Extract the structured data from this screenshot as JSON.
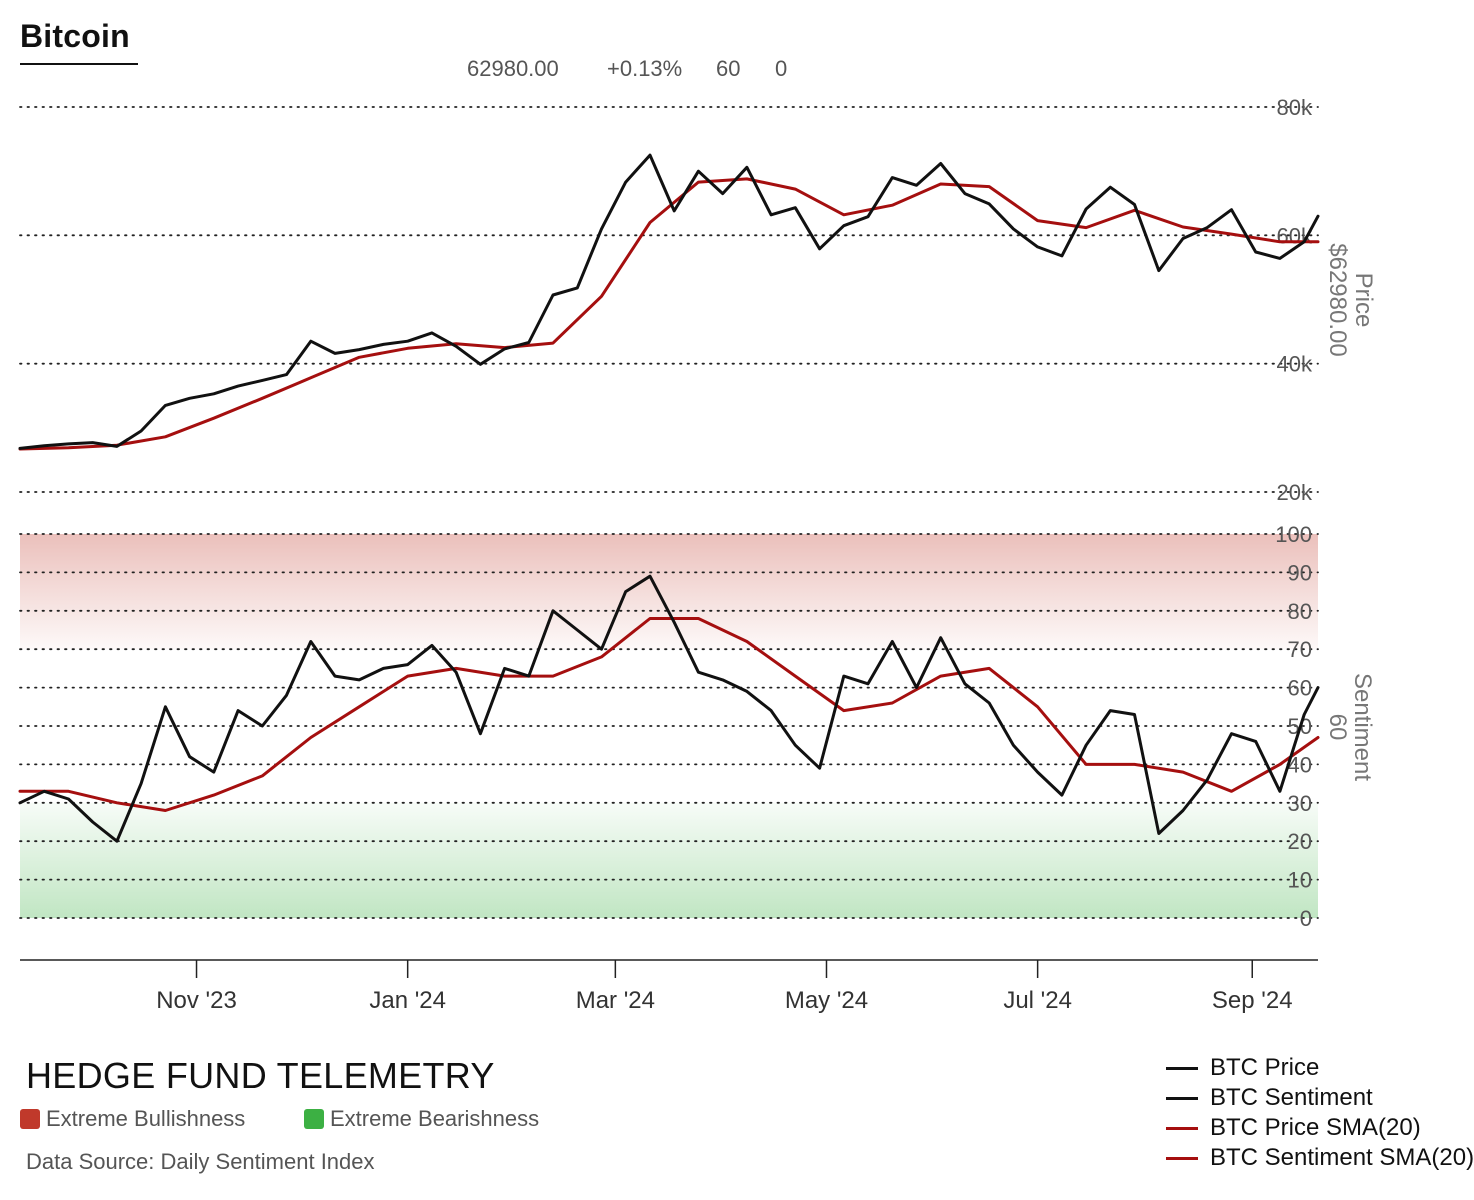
{
  "header": {
    "title": "Bitcoin",
    "readout": [
      "62980.00",
      "+0.13%",
      "60",
      "0"
    ]
  },
  "footer": {
    "brand": "HEDGE FUND TELEMETRY",
    "key_bull": "Extreme Bullishness",
    "key_bear": "Extreme Bearishness",
    "key_bull_color": "#c0392b",
    "key_bear_color": "#3cb043",
    "source": "Data Source: Daily Sentiment Index"
  },
  "chart_data": {
    "type": "line",
    "x_ticks": [
      "Nov '23",
      "Jan '24",
      "Mar '24",
      "May '24",
      "Jul '24",
      "Sep '24"
    ],
    "legend": [
      {
        "name": "BTC Price",
        "color": "#111111"
      },
      {
        "name": "BTC Sentiment",
        "color": "#111111"
      },
      {
        "name": "BTC Price SMA(20)",
        "color": "#a50f0f"
      },
      {
        "name": "BTC Sentiment SMA(20)",
        "color": "#a50f0f"
      }
    ],
    "price_panel": {
      "ylabel": "Price",
      "current_label": "$62980.00",
      "yticks": [
        20000,
        40000,
        60000,
        80000
      ],
      "ytick_labels": [
        "20k",
        "40k",
        "60k",
        "80k"
      ],
      "ylim": [
        20000,
        80000
      ],
      "series": [
        {
          "name": "BTC Price",
          "color": "#111111",
          "points": [
            [
              "2023-09-11",
              26800
            ],
            [
              "2023-09-18",
              27200
            ],
            [
              "2023-09-25",
              27500
            ],
            [
              "2023-10-02",
              27700
            ],
            [
              "2023-10-09",
              27100
            ],
            [
              "2023-10-16",
              29500
            ],
            [
              "2023-10-23",
              33500
            ],
            [
              "2023-10-30",
              34600
            ],
            [
              "2023-11-06",
              35300
            ],
            [
              "2023-11-13",
              36500
            ],
            [
              "2023-11-20",
              37400
            ],
            [
              "2023-11-27",
              38300
            ],
            [
              "2023-12-04",
              43500
            ],
            [
              "2023-12-11",
              41600
            ],
            [
              "2023-12-18",
              42200
            ],
            [
              "2023-12-25",
              43000
            ],
            [
              "2024-01-01",
              43500
            ],
            [
              "2024-01-08",
              44800
            ],
            [
              "2024-01-15",
              42700
            ],
            [
              "2024-01-22",
              39900
            ],
            [
              "2024-01-29",
              42300
            ],
            [
              "2024-02-05",
              43300
            ],
            [
              "2024-02-12",
              50700
            ],
            [
              "2024-02-19",
              51800
            ],
            [
              "2024-02-26",
              61000
            ],
            [
              "2024-03-04",
              68300
            ],
            [
              "2024-03-11",
              72500
            ],
            [
              "2024-03-18",
              63800
            ],
            [
              "2024-03-25",
              70000
            ],
            [
              "2024-04-01",
              66500
            ],
            [
              "2024-04-08",
              70600
            ],
            [
              "2024-04-15",
              63200
            ],
            [
              "2024-04-22",
              64300
            ],
            [
              "2024-04-29",
              57900
            ],
            [
              "2024-05-06",
              61500
            ],
            [
              "2024-05-13",
              62900
            ],
            [
              "2024-05-20",
              69000
            ],
            [
              "2024-05-27",
              67800
            ],
            [
              "2024-06-03",
              71200
            ],
            [
              "2024-06-10",
              66500
            ],
            [
              "2024-06-17",
              64900
            ],
            [
              "2024-06-24",
              61000
            ],
            [
              "2024-07-01",
              58200
            ],
            [
              "2024-07-08",
              56800
            ],
            [
              "2024-07-15",
              64100
            ],
            [
              "2024-07-22",
              67500
            ],
            [
              "2024-07-29",
              64800
            ],
            [
              "2024-08-05",
              54500
            ],
            [
              "2024-08-12",
              59500
            ],
            [
              "2024-08-19",
              61200
            ],
            [
              "2024-08-26",
              64000
            ],
            [
              "2024-09-02",
              57400
            ],
            [
              "2024-09-09",
              56400
            ],
            [
              "2024-09-16",
              59000
            ],
            [
              "2024-09-20",
              62980
            ]
          ]
        },
        {
          "name": "BTC Price SMA(20)",
          "color": "#a50f0f",
          "points": [
            [
              "2023-09-11",
              26700
            ],
            [
              "2023-09-25",
              26900
            ],
            [
              "2023-10-09",
              27300
            ],
            [
              "2023-10-23",
              28600
            ],
            [
              "2023-11-06",
              31500
            ],
            [
              "2023-11-20",
              34600
            ],
            [
              "2023-12-04",
              37800
            ],
            [
              "2023-12-18",
              41000
            ],
            [
              "2024-01-01",
              42400
            ],
            [
              "2024-01-15",
              43100
            ],
            [
              "2024-01-29",
              42500
            ],
            [
              "2024-02-12",
              43200
            ],
            [
              "2024-02-26",
              50500
            ],
            [
              "2024-03-11",
              62000
            ],
            [
              "2024-03-25",
              68300
            ],
            [
              "2024-04-08",
              68800
            ],
            [
              "2024-04-22",
              67200
            ],
            [
              "2024-05-06",
              63200
            ],
            [
              "2024-05-20",
              64700
            ],
            [
              "2024-06-03",
              68000
            ],
            [
              "2024-06-17",
              67600
            ],
            [
              "2024-07-01",
              62300
            ],
            [
              "2024-07-15",
              61200
            ],
            [
              "2024-07-29",
              63900
            ],
            [
              "2024-08-12",
              61300
            ],
            [
              "2024-08-26",
              60200
            ],
            [
              "2024-09-09",
              59000
            ],
            [
              "2024-09-20",
              59000
            ]
          ]
        }
      ]
    },
    "sentiment_panel": {
      "ylabel": "Sentiment",
      "current_label": "60",
      "ylim": [
        0,
        100
      ],
      "yticks": [
        0,
        10,
        20,
        30,
        40,
        50,
        60,
        70,
        80,
        90,
        100
      ],
      "bands": [
        {
          "label": "Extreme Bullishness",
          "from": 70,
          "to": 100,
          "color": "#c0392b"
        },
        {
          "label": "Extreme Bearishness",
          "from": 0,
          "to": 30,
          "color": "#3cb043"
        }
      ],
      "series": [
        {
          "name": "BTC Sentiment",
          "color": "#111111",
          "points": [
            [
              "2023-09-11",
              30
            ],
            [
              "2023-09-18",
              33
            ],
            [
              "2023-09-25",
              31
            ],
            [
              "2023-10-02",
              25
            ],
            [
              "2023-10-09",
              20
            ],
            [
              "2023-10-16",
              35
            ],
            [
              "2023-10-23",
              55
            ],
            [
              "2023-10-30",
              42
            ],
            [
              "2023-11-06",
              38
            ],
            [
              "2023-11-13",
              54
            ],
            [
              "2023-11-20",
              50
            ],
            [
              "2023-11-27",
              58
            ],
            [
              "2023-12-04",
              72
            ],
            [
              "2023-12-11",
              63
            ],
            [
              "2023-12-18",
              62
            ],
            [
              "2023-12-25",
              65
            ],
            [
              "2024-01-01",
              66
            ],
            [
              "2024-01-08",
              71
            ],
            [
              "2024-01-15",
              64
            ],
            [
              "2024-01-22",
              48
            ],
            [
              "2024-01-29",
              65
            ],
            [
              "2024-02-05",
              63
            ],
            [
              "2024-02-12",
              80
            ],
            [
              "2024-02-19",
              75
            ],
            [
              "2024-02-26",
              70
            ],
            [
              "2024-03-04",
              85
            ],
            [
              "2024-03-11",
              89
            ],
            [
              "2024-03-18",
              77
            ],
            [
              "2024-03-25",
              64
            ],
            [
              "2024-04-01",
              62
            ],
            [
              "2024-04-08",
              59
            ],
            [
              "2024-04-15",
              54
            ],
            [
              "2024-04-22",
              45
            ],
            [
              "2024-04-29",
              39
            ],
            [
              "2024-05-06",
              63
            ],
            [
              "2024-05-13",
              61
            ],
            [
              "2024-05-20",
              72
            ],
            [
              "2024-05-27",
              60
            ],
            [
              "2024-06-03",
              73
            ],
            [
              "2024-06-10",
              61
            ],
            [
              "2024-06-17",
              56
            ],
            [
              "2024-06-24",
              45
            ],
            [
              "2024-07-01",
              38
            ],
            [
              "2024-07-08",
              32
            ],
            [
              "2024-07-15",
              45
            ],
            [
              "2024-07-22",
              54
            ],
            [
              "2024-07-29",
              53
            ],
            [
              "2024-08-05",
              22
            ],
            [
              "2024-08-12",
              28
            ],
            [
              "2024-08-19",
              36
            ],
            [
              "2024-08-26",
              48
            ],
            [
              "2024-09-02",
              46
            ],
            [
              "2024-09-09",
              33
            ],
            [
              "2024-09-16",
              53
            ],
            [
              "2024-09-20",
              60
            ]
          ]
        },
        {
          "name": "BTC Sentiment SMA(20)",
          "color": "#a50f0f",
          "points": [
            [
              "2023-09-11",
              33
            ],
            [
              "2023-09-25",
              33
            ],
            [
              "2023-10-09",
              30
            ],
            [
              "2023-10-23",
              28
            ],
            [
              "2023-11-06",
              32
            ],
            [
              "2023-11-20",
              37
            ],
            [
              "2023-12-04",
              47
            ],
            [
              "2023-12-18",
              55
            ],
            [
              "2024-01-01",
              63
            ],
            [
              "2024-01-15",
              65
            ],
            [
              "2024-01-29",
              63
            ],
            [
              "2024-02-12",
              63
            ],
            [
              "2024-02-26",
              68
            ],
            [
              "2024-03-11",
              78
            ],
            [
              "2024-03-25",
              78
            ],
            [
              "2024-04-08",
              72
            ],
            [
              "2024-04-22",
              63
            ],
            [
              "2024-05-06",
              54
            ],
            [
              "2024-05-20",
              56
            ],
            [
              "2024-06-03",
              63
            ],
            [
              "2024-06-17",
              65
            ],
            [
              "2024-07-01",
              55
            ],
            [
              "2024-07-15",
              40
            ],
            [
              "2024-07-29",
              40
            ],
            [
              "2024-08-12",
              38
            ],
            [
              "2024-08-26",
              33
            ],
            [
              "2024-09-09",
              40
            ],
            [
              "2024-09-20",
              47
            ]
          ]
        }
      ]
    }
  }
}
